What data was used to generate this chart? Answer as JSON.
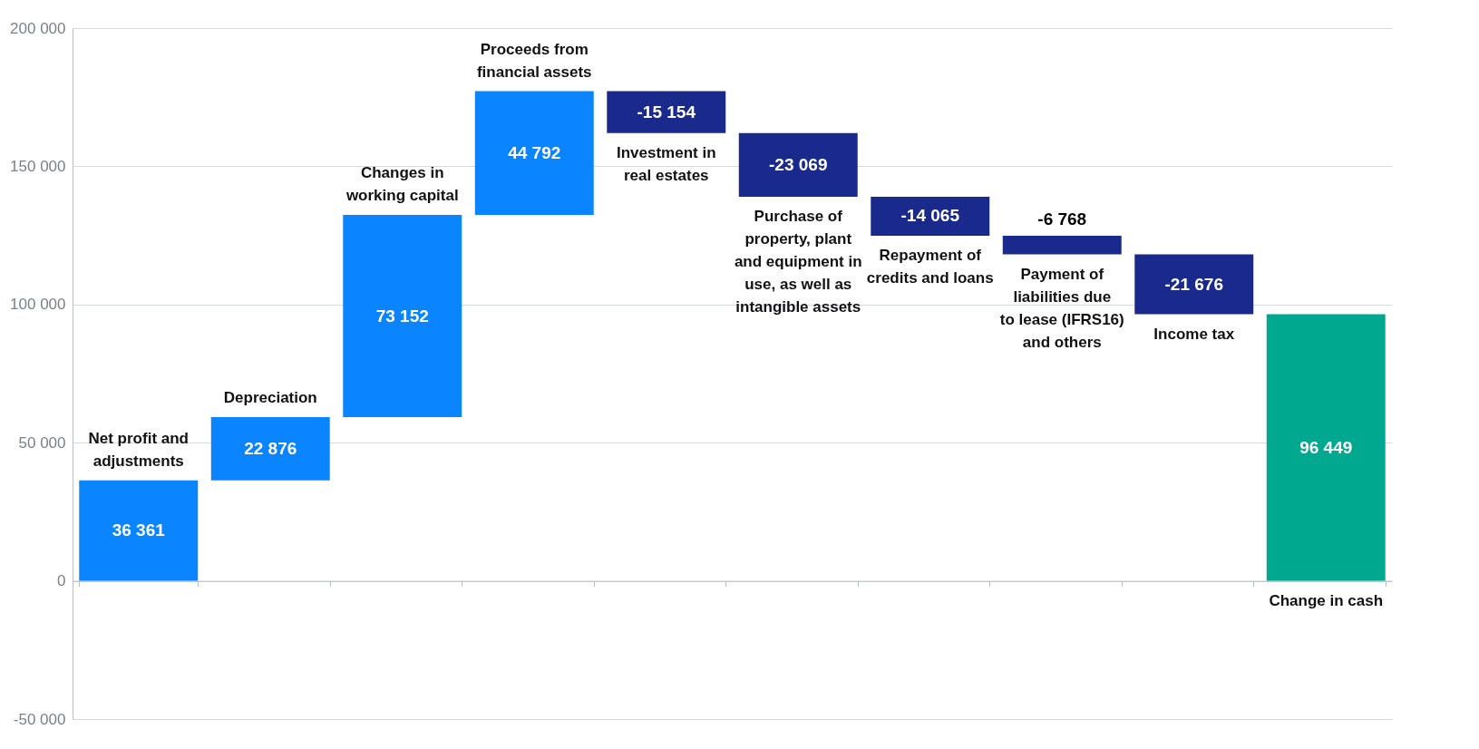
{
  "chart_data": {
    "type": "bar",
    "categories": [
      "Net profit and adjustments",
      "Depreciation",
      "Changes in working capital",
      "Proceeds from financial assets",
      "Investment in real estates",
      "Purchase of property, plant and equipment in use, as well as intangible assets",
      "Repayment of credits and loans",
      "Payment of liabilities due to lease (IFRS16) and others",
      "Income tax",
      "Change in cash"
    ],
    "values": [
      36361,
      22876,
      73152,
      44792,
      -15154,
      -23069,
      -14065,
      -6768,
      -21676,
      96449
    ],
    "base": [
      0,
      36361,
      59237,
      132389,
      177181,
      162027,
      138958,
      124893,
      118125,
      0
    ],
    "colors": [
      "#0a84ff",
      "#0a84ff",
      "#0a84ff",
      "#0a84ff",
      "#1a2a8c",
      "#1a2a8c",
      "#1a2a8c",
      "#1a2a8c",
      "#1a2a8c",
      "#00a88f"
    ],
    "ylim": [
      -50000,
      200000
    ],
    "yticks": [
      {
        "value": -50000,
        "label": "-50 000"
      },
      {
        "value": 0,
        "label": "0"
      },
      {
        "value": 50000,
        "label": "50 000"
      },
      {
        "value": 100000,
        "label": "100 000"
      },
      {
        "value": 150000,
        "label": "150 000"
      },
      {
        "value": 200000,
        "label": "200 000"
      }
    ],
    "grid": "y",
    "data_labels": true
  }
}
